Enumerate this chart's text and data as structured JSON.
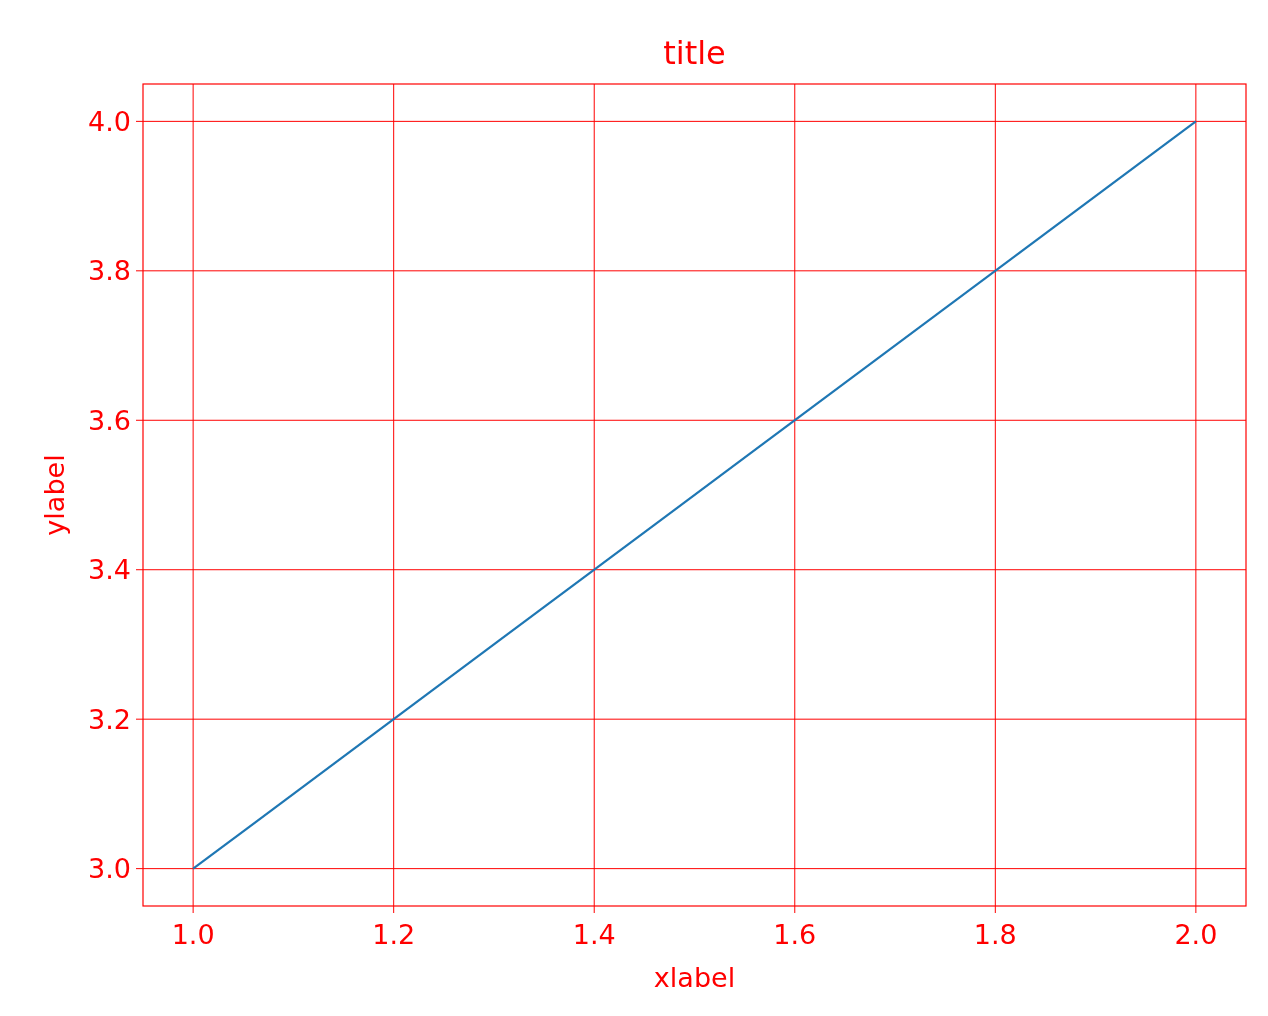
{
  "chart_data": {
    "type": "line",
    "title": "title",
    "xlabel": "xlabel",
    "ylabel": "ylabel",
    "x": [
      1.0,
      2.0
    ],
    "series": [
      {
        "color": "#1f77b4",
        "values": [
          3.0,
          4.0
        ]
      }
    ],
    "xlim": [
      0.95,
      2.05
    ],
    "ylim": [
      2.95,
      4.05
    ],
    "xticks": [
      {
        "value": 1.0,
        "label": "1.0"
      },
      {
        "value": 1.2,
        "label": "1.2"
      },
      {
        "value": 1.4,
        "label": "1.4"
      },
      {
        "value": 1.6,
        "label": "1.6"
      },
      {
        "value": 1.8,
        "label": "1.8"
      },
      {
        "value": 2.0,
        "label": "2.0"
      }
    ],
    "yticks": [
      {
        "value": 3.0,
        "label": "3.0"
      },
      {
        "value": 3.2,
        "label": "3.2"
      },
      {
        "value": 3.4,
        "label": "3.4"
      },
      {
        "value": 3.6,
        "label": "3.6"
      },
      {
        "value": 3.8,
        "label": "3.8"
      },
      {
        "value": 4.0,
        "label": "4.0"
      }
    ],
    "grid": true
  }
}
